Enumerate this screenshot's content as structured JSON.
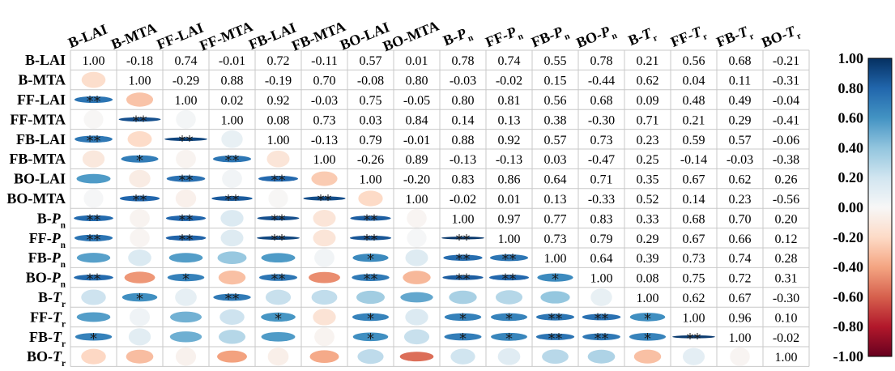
{
  "chart_data": {
    "type": "heatmap",
    "labels": [
      {
        "base": "B-LAI",
        "sub": ""
      },
      {
        "base": "B-MTA",
        "sub": ""
      },
      {
        "base": "FF-LAI",
        "sub": ""
      },
      {
        "base": "FF-MTA",
        "sub": ""
      },
      {
        "base": "FB-LAI",
        "sub": ""
      },
      {
        "base": "FB-MTA",
        "sub": ""
      },
      {
        "base": "BO-LAI",
        "sub": ""
      },
      {
        "base": "BO-MTA",
        "sub": ""
      },
      {
        "base": "B-P",
        "sub": "n"
      },
      {
        "base": "FF-P",
        "sub": "n"
      },
      {
        "base": "FB-P",
        "sub": "n"
      },
      {
        "base": "BO-P",
        "sub": "n"
      },
      {
        "base": "B-T",
        "sub": "r"
      },
      {
        "base": "FF-T",
        "sub": "r"
      },
      {
        "base": "FB-T",
        "sub": "r"
      },
      {
        "base": "BO-T",
        "sub": "r"
      }
    ],
    "upper_values": [
      [
        "1.00",
        "-0.18",
        "0.74",
        "-0.01",
        "0.72",
        "-0.11",
        "0.57",
        "0.01",
        "0.78",
        "0.74",
        "0.55",
        "0.78",
        "0.21",
        "0.56",
        "0.68",
        "-0.21"
      ],
      [
        "1.00",
        "-0.29",
        "0.88",
        "-0.19",
        "0.70",
        "-0.08",
        "0.80",
        "-0.03",
        "-0.02",
        "0.15",
        "-0.44",
        "0.62",
        "0.04",
        "0.11",
        "-0.31"
      ],
      [
        "1.00",
        "0.02",
        "0.92",
        "-0.03",
        "0.75",
        "-0.05",
        "0.80",
        "0.81",
        "0.56",
        "0.68",
        "0.09",
        "0.48",
        "0.49",
        "-0.04"
      ],
      [
        "1.00",
        "0.08",
        "0.73",
        "0.03",
        "0.84",
        "0.14",
        "0.13",
        "0.38",
        "-0.30",
        "0.71",
        "0.21",
        "0.29",
        "-0.41"
      ],
      [
        "1.00",
        "-0.13",
        "0.79",
        "-0.01",
        "0.88",
        "0.92",
        "0.57",
        "0.73",
        "0.23",
        "0.59",
        "0.57",
        "-0.06"
      ],
      [
        "1.00",
        "-0.26",
        "0.89",
        "-0.13",
        "-0.13",
        "0.03",
        "-0.47",
        "0.25",
        "-0.14",
        "-0.03",
        "-0.38"
      ],
      [
        "1.00",
        "-0.20",
        "0.83",
        "0.86",
        "0.64",
        "0.71",
        "0.35",
        "0.67",
        "0.62",
        "0.26"
      ],
      [
        "1.00",
        "-0.02",
        "0.01",
        "0.13",
        "-0.33",
        "0.52",
        "0.14",
        "0.23",
        "-0.56"
      ],
      [
        "1.00",
        "0.97",
        "0.77",
        "0.83",
        "0.33",
        "0.68",
        "0.70",
        "0.20"
      ],
      [
        "1.00",
        "0.73",
        "0.79",
        "0.29",
        "0.67",
        "0.66",
        "0.12"
      ],
      [
        "1.00",
        "0.64",
        "0.39",
        "0.73",
        "0.74",
        "0.28"
      ],
      [
        "1.00",
        "0.08",
        "0.75",
        "0.72",
        "0.31"
      ],
      [
        "1.00",
        "0.62",
        "0.67",
        "-0.30"
      ],
      [
        "1.00",
        "0.96",
        "0.10"
      ],
      [
        "1.00",
        "-0.02"
      ],
      [
        "1.00"
      ]
    ],
    "significance": [
      [
        "",
        "",
        "",
        "",
        "",
        "",
        "",
        "",
        "",
        "",
        "",
        "",
        "",
        "",
        "",
        ""
      ],
      [
        "",
        "",
        "",
        "",
        "",
        "",
        "",
        "",
        "",
        "",
        "",
        "",
        "",
        "",
        "",
        ""
      ],
      [
        "**",
        "",
        "",
        "",
        "",
        "",
        "",
        "",
        "",
        "",
        "",
        "",
        "",
        "",
        "",
        ""
      ],
      [
        "",
        "**",
        "",
        "",
        "",
        "",
        "",
        "",
        "",
        "",
        "",
        "",
        "",
        "",
        "",
        ""
      ],
      [
        "**",
        "",
        "**",
        "",
        "",
        "",
        "",
        "",
        "",
        "",
        "",
        "",
        "",
        "",
        "",
        ""
      ],
      [
        "",
        "*",
        "",
        "**",
        "",
        "",
        "",
        "",
        "",
        "",
        "",
        "",
        "",
        "",
        "",
        ""
      ],
      [
        "",
        "",
        "**",
        "",
        "**",
        "",
        "",
        "",
        "",
        "",
        "",
        "",
        "",
        "",
        "",
        ""
      ],
      [
        "",
        "**",
        "",
        "**",
        "",
        "**",
        "",
        "",
        "",
        "",
        "",
        "",
        "",
        "",
        "",
        ""
      ],
      [
        "**",
        "",
        "**",
        "",
        "**",
        "",
        "**",
        "",
        "",
        "",
        "",
        "",
        "",
        "",
        "",
        ""
      ],
      [
        "**",
        "",
        "**",
        "",
        "**",
        "",
        "**",
        "",
        "**",
        "",
        "",
        "",
        "",
        "",
        "",
        ""
      ],
      [
        "",
        "",
        "",
        "",
        "",
        "",
        "*",
        "",
        "**",
        "**",
        "",
        "",
        "",
        "",
        "",
        ""
      ],
      [
        "**",
        "",
        "*",
        "",
        "**",
        "",
        "**",
        "",
        "**",
        "**",
        "*",
        "",
        "",
        "",
        "",
        ""
      ],
      [
        "",
        "*",
        "",
        "**",
        "",
        "",
        "",
        "",
        "",
        "",
        "",
        "",
        "",
        "",
        "",
        ""
      ],
      [
        "",
        "",
        "",
        "",
        "*",
        "",
        "*",
        "",
        "*",
        "*",
        "**",
        "**",
        "*",
        "",
        "",
        ""
      ],
      [
        "*",
        "",
        "",
        "",
        "",
        "",
        "*",
        "",
        "*",
        "*",
        "**",
        "**",
        "*",
        "**",
        "",
        ""
      ],
      [
        "",
        "",
        "",
        "",
        "",
        "",
        "",
        "",
        "",
        "",
        "",
        "",
        "",
        "",
        "",
        ""
      ]
    ],
    "colorbar": {
      "min": -1.0,
      "max": 1.0,
      "ticks": [
        "1.00",
        "0.80",
        "0.60",
        "0.40",
        "0.20",
        "0.00",
        "-0.20",
        "-0.40",
        "-0.60",
        "-0.80",
        "-1.00"
      ],
      "colormap": "RdBu"
    }
  }
}
